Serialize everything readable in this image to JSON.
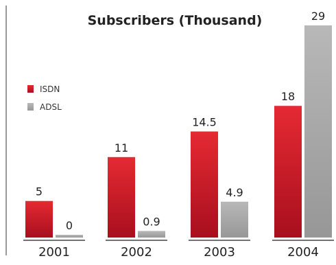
{
  "chart_data": {
    "type": "bar",
    "title": "Subscribers (Thousand)",
    "categories": [
      "2001",
      "2002",
      "2003",
      "2004"
    ],
    "series": [
      {
        "name": "ISDN",
        "color": "#d3202c",
        "values": [
          5,
          11,
          14.5,
          18
        ],
        "value_labels": [
          "5",
          "11",
          "14.5",
          "18"
        ]
      },
      {
        "name": "ADSL",
        "color": "#a9a9a9",
        "values": [
          0,
          0.9,
          4.9,
          29
        ],
        "value_labels": [
          "0",
          "0.9",
          "4.9",
          "29"
        ]
      }
    ],
    "xlabel": "",
    "ylabel": "",
    "ylim": [
      0,
      29
    ],
    "grid": false,
    "legend_position": "left"
  }
}
